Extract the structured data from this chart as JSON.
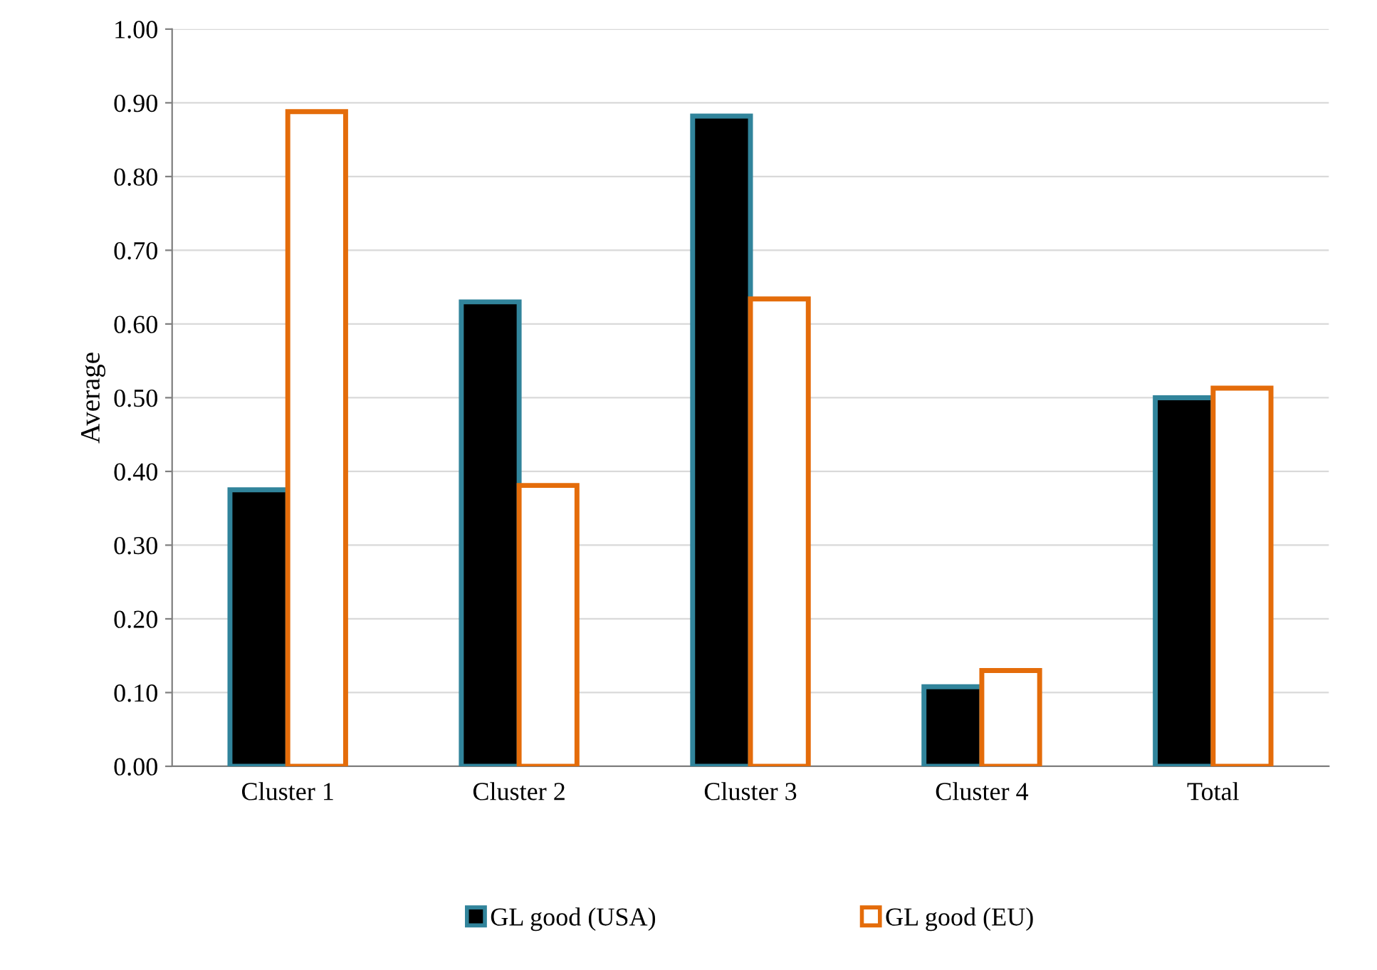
{
  "chart_data": {
    "type": "bar",
    "ylabel": "Average",
    "categories": [
      "Cluster 1",
      "Cluster 2",
      "Cluster 3",
      "Cluster 4",
      "Total"
    ],
    "series": [
      {
        "name": "GL good (USA)",
        "color": "#000000",
        "values": [
          0.375,
          0.63,
          0.882,
          0.108,
          0.5
        ]
      },
      {
        "name": "GL good (EU)",
        "color": "#e46c0a",
        "values": [
          0.888,
          0.381,
          0.634,
          0.13,
          0.513
        ]
      }
    ],
    "ylim": [
      0,
      1
    ],
    "yticks": [
      {
        "value": 0,
        "label": "0.00"
      },
      {
        "value": 0.1,
        "label": "0.10"
      },
      {
        "value": 0.2,
        "label": "0.20"
      },
      {
        "value": 0.3,
        "label": "0.30"
      },
      {
        "value": 0.4,
        "label": "0.40"
      },
      {
        "value": 0.5,
        "label": "0.50"
      },
      {
        "value": 0.6,
        "label": "0.60"
      },
      {
        "value": 0.7,
        "label": "0.70"
      },
      {
        "value": 0.8,
        "label": "0.80"
      },
      {
        "value": 0.9,
        "label": "0.90"
      },
      {
        "value": 1.0,
        "label": "1.00"
      }
    ],
    "grid": "y",
    "legend": "bottom"
  }
}
